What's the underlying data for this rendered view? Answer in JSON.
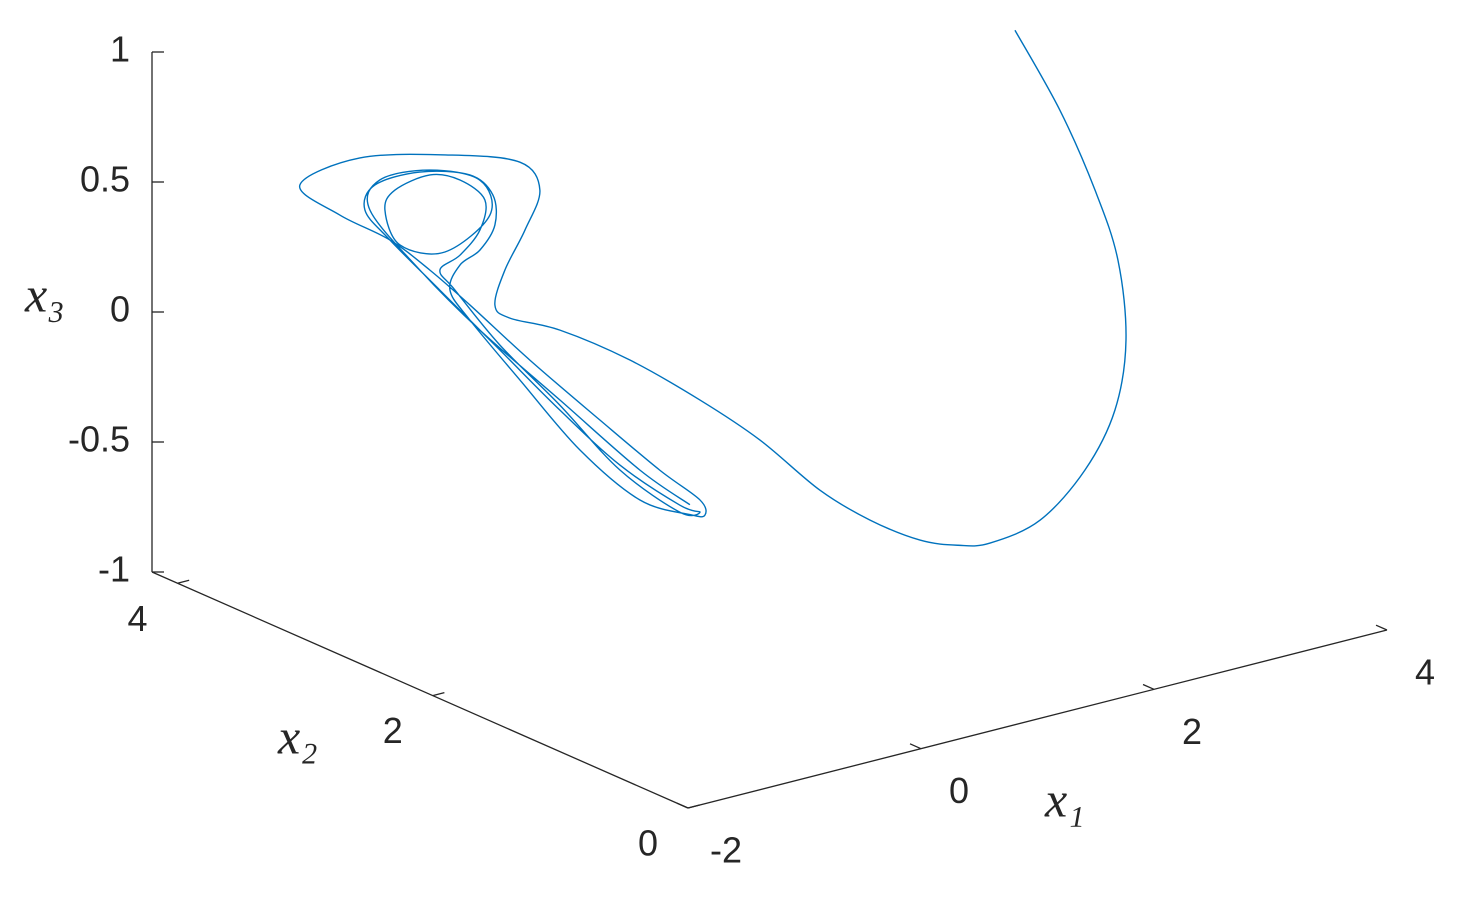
{
  "chart_data": {
    "type": "line3d",
    "x_label": "x₁",
    "y_label": "x₂",
    "z_label": "x₃",
    "xlim": [
      -2,
      4
    ],
    "xticks": [
      -2,
      0,
      2,
      4
    ],
    "ylim": [
      0,
      4.2
    ],
    "yticks": [
      0,
      2,
      4
    ],
    "zlim": [
      -1,
      1
    ],
    "zticks": [
      -1,
      -0.5,
      0,
      0.5,
      1
    ],
    "series": [
      {
        "color": "#0072bd",
        "x": [
          1.902,
          2.288,
          2.589,
          2.786,
          2.855,
          2.76,
          2.503,
          2.117,
          1.688,
          1.413,
          1.087,
          0.658,
          0.228,
          0.261,
          0.294,
          0.24,
          0.187,
          -0.023,
          -0.152,
          -0.066,
          0.106,
          0.234,
          0.063,
          -0.538,
          -1.311,
          -1.826,
          -1.483,
          -1.053,
          -0.71,
          -0.367,
          0.148,
          0.749,
          1.264,
          1.609,
          1.65,
          1.522,
          1.093,
          0.578,
          0.063,
          -0.367,
          -0.538,
          -0.452,
          -0.281,
          -0.152,
          -0.169,
          -0.367,
          -0.796,
          -1.183,
          -1.268,
          -1.053,
          -0.624,
          -0.109,
          0.406,
          0.921,
          1.436,
          1.609,
          1.436,
          0.921,
          0.406,
          -0.109,
          -0.495,
          -0.624,
          -0.452,
          -0.281,
          -0.238,
          -0.452,
          -0.71,
          -1.01,
          -1.096,
          -0.967,
          -0.581,
          -0.195,
          -0.281,
          -0.71,
          -1.139,
          -1.225,
          -0.796,
          -0.281,
          0.406,
          1.093,
          1.522
        ],
        "y": [
          1,
          1,
          1,
          1,
          1,
          1,
          1,
          1,
          1,
          1,
          1,
          1,
          1,
          1.5,
          2,
          2.5,
          3,
          3.2,
          3.2,
          3.2,
          3.2,
          3.2,
          3.2,
          3.2,
          3.2,
          3.2,
          3.2,
          3.2,
          3.2,
          3.2,
          3.2,
          3.2,
          3.2,
          3.2,
          3.2,
          3.2,
          3.2,
          3.2,
          3.2,
          3.2,
          3.2,
          3.2,
          3.2,
          3.2,
          3.2,
          3.2,
          3.2,
          3.2,
          3.2,
          3.2,
          3.2,
          3.2,
          3.2,
          3.2,
          3.2,
          3.2,
          3.2,
          3.2,
          3.2,
          3.2,
          3.2,
          3.2,
          3.2,
          3.2,
          3.2,
          3.2,
          3.2,
          3.2,
          3.2,
          3.2,
          3.2,
          3.2,
          3.2,
          3.2,
          3.2,
          3.2,
          3.2,
          3.2,
          3.2,
          3.2,
          3.2
        ],
        "z": [
          1.33,
          0.978,
          0.637,
          0.345,
          0.029,
          -0.229,
          -0.43,
          -0.579,
          -0.618,
          -0.595,
          -0.538,
          -0.412,
          -0.248,
          -0.167,
          -0.125,
          -0.073,
          -0.06,
          -0.033,
          0.032,
          0.157,
          0.291,
          0.43,
          0.557,
          0.653,
          0.73,
          0.685,
          0.53,
          0.385,
          0.23,
          0.057,
          -0.214,
          -0.513,
          -0.765,
          -0.919,
          -0.982,
          -0.965,
          -0.86,
          -0.609,
          -0.281,
          -0.001,
          0.134,
          0.22,
          0.258,
          0.34,
          0.457,
          0.557,
          0.617,
          0.611,
          0.525,
          0.385,
          0.143,
          -0.146,
          -0.436,
          -0.706,
          -0.919,
          -0.965,
          -0.946,
          -0.725,
          -0.417,
          -0.127,
          0.129,
          0.22,
          0.258,
          0.335,
          0.446,
          0.547,
          0.596,
          0.572,
          0.505,
          0.356,
          0.285,
          0.383,
          0.527,
          0.615,
          0.626,
          0.52,
          0.24,
          -0.05,
          -0.397,
          -0.745,
          -0.927
        ]
      }
    ]
  }
}
